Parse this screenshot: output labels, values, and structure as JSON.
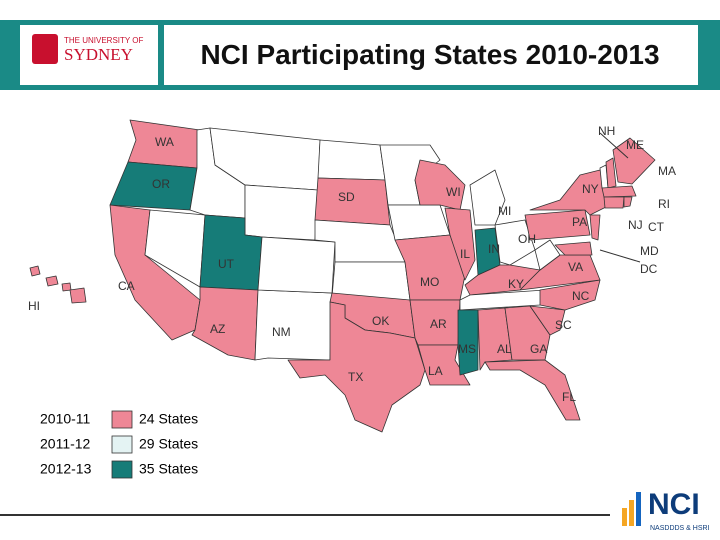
{
  "header": {
    "title": "NCI Participating States 2010-2013",
    "logo": {
      "line1": "THE UNIVERSITY OF",
      "line2": "SYDNEY"
    }
  },
  "map": {
    "labels": [
      "WA",
      "OR",
      "CA",
      "HI",
      "UT",
      "AZ",
      "NM",
      "SD",
      "OK",
      "TX",
      "MO",
      "AR",
      "LA",
      "MS",
      "AL",
      "GA",
      "FL",
      "SC",
      "NC",
      "KY",
      "IL",
      "IN",
      "OH",
      "WI",
      "MI",
      "VA",
      "PA",
      "NY",
      "NJ",
      "CT",
      "RI",
      "MA",
      "ME",
      "NH",
      "MD",
      "DC"
    ]
  },
  "legend": [
    {
      "period": "2010-11",
      "label": "24 States",
      "color": "#ee8796"
    },
    {
      "period": "2011-12",
      "label": "29 States",
      "color": "#e4f3f3"
    },
    {
      "period": "2012-13",
      "label": "35 States",
      "color": "#167c78"
    }
  ],
  "footer_logo": {
    "name": "NCI",
    "subtitle": "NASDDDS & HSRI"
  }
}
